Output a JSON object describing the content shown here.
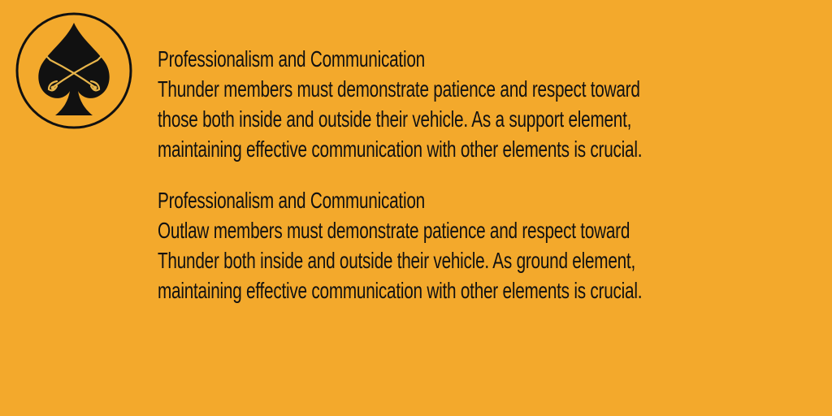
{
  "colors": {
    "background": "#F3A92C",
    "text": "#111111",
    "emblem_ring": "#111111",
    "emblem_spade": "#111111",
    "emblem_sabers": "#E8B54A"
  },
  "emblem": {
    "icon": "spade-crossed-sabers-icon"
  },
  "sections": [
    {
      "heading": "Professionalism and Communication",
      "lines": [
        "Thunder members must demonstrate patience and respect toward",
        "those both inside and outside their vehicle. As a support element,",
        "maintaining effective communication with other elements is crucial."
      ]
    },
    {
      "heading": "Professionalism and Communication",
      "lines": [
        "Outlaw members must demonstrate patience and respect toward",
        "Thunder both inside and outside their vehicle. As ground element,",
        "maintaining effective communication with other elements is crucial."
      ]
    }
  ]
}
